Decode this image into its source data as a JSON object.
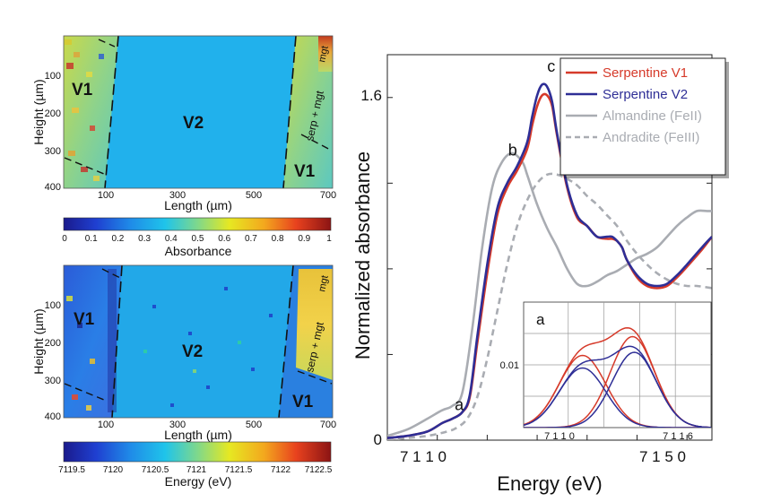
{
  "chart_data": [
    {
      "type": "heatmap",
      "panel": "absorbance-map",
      "ylabel": "Height (µm)",
      "xlabel": "Length (µm)",
      "yticks": [
        "100",
        "200",
        "300",
        "400"
      ],
      "xticks": [
        "100",
        "300",
        "500",
        "700"
      ],
      "regions": [
        "V1",
        "V2",
        "V1"
      ],
      "annotation": "serp + mgt",
      "annotation_top": "mgt",
      "colorbar": {
        "label": "Absorbance",
        "ticks": [
          "0",
          "0.1",
          "0.2",
          "0.3",
          "0.4",
          "0.5",
          "0.6",
          "0.7",
          "0.8",
          "0.9",
          "1"
        ]
      }
    },
    {
      "type": "heatmap",
      "panel": "energy-map",
      "ylabel": "Height (µm)",
      "xlabel": "Length (µm)",
      "yticks": [
        "100",
        "200",
        "300",
        "400"
      ],
      "xticks": [
        "100",
        "300",
        "500",
        "700"
      ],
      "regions": [
        "V1",
        "V2",
        "V1"
      ],
      "annotation": "serp + mgt",
      "annotation_top": "mgt",
      "colorbar": {
        "label": "Energy (eV)",
        "ticks": [
          "7119.5",
          "7120",
          "7120.5",
          "7121",
          "7121.5",
          "7122",
          "7122.5"
        ]
      }
    },
    {
      "type": "line",
      "panel": "xanes-spectra",
      "xlabel": "Energy (eV)",
      "ylabel": "Normalized absorbance",
      "xticks": [
        "7 1 1 0",
        "7 1 5 0"
      ],
      "yticks": [
        "0",
        "1.6"
      ],
      "xlim": [
        7100,
        7165
      ],
      "ylim": [
        0,
        1.8
      ],
      "peak_labels": [
        {
          "text": "a",
          "x": 7113.5,
          "y": 0.14
        },
        {
          "text": "b",
          "x": 7124.2,
          "y": 1.33
        },
        {
          "text": "c",
          "x": 7132,
          "y": 1.72
        }
      ],
      "series": [
        {
          "name": "Serpentine V1",
          "color": "#d63a2a",
          "dash": "solid",
          "x": [
            7100,
            7104,
            7108,
            7111,
            7113,
            7115,
            7116.5,
            7118,
            7120,
            7122,
            7124,
            7126,
            7128,
            7129,
            7130,
            7131,
            7132,
            7133,
            7134,
            7136,
            7138,
            7140,
            7142,
            7144,
            7145,
            7146,
            7147,
            7148,
            7150,
            7152,
            7154,
            7156,
            7158,
            7160,
            7163,
            7165
          ],
          "y": [
            0.01,
            0.02,
            0.04,
            0.08,
            0.1,
            0.13,
            0.2,
            0.45,
            0.78,
            1.05,
            1.18,
            1.26,
            1.36,
            1.47,
            1.56,
            1.61,
            1.61,
            1.56,
            1.42,
            1.18,
            1.04,
            1.0,
            0.95,
            0.94,
            0.94,
            0.93,
            0.9,
            0.84,
            0.76,
            0.72,
            0.71,
            0.72,
            0.76,
            0.81,
            0.89,
            0.95
          ]
        },
        {
          "name": "Serpentine V2",
          "color": "#2e2e96",
          "dash": "solid",
          "x": [
            7100,
            7104,
            7108,
            7111,
            7113,
            7115,
            7116.5,
            7118,
            7120,
            7122,
            7124,
            7126,
            7128,
            7129,
            7130,
            7131,
            7132,
            7133,
            7134,
            7136,
            7138,
            7140,
            7142,
            7144,
            7145,
            7146,
            7147,
            7148,
            7150,
            7152,
            7154,
            7156,
            7158,
            7160,
            7163,
            7165
          ],
          "y": [
            0.01,
            0.02,
            0.04,
            0.08,
            0.1,
            0.13,
            0.21,
            0.48,
            0.82,
            1.08,
            1.2,
            1.28,
            1.39,
            1.51,
            1.61,
            1.66,
            1.65,
            1.58,
            1.43,
            1.19,
            1.05,
            1.0,
            0.95,
            0.95,
            0.95,
            0.93,
            0.9,
            0.84,
            0.77,
            0.73,
            0.72,
            0.73,
            0.77,
            0.82,
            0.9,
            0.95
          ]
        },
        {
          "name": "Almandine (FeII)",
          "color": "#a9acb2",
          "dash": "solid",
          "x": [
            7100,
            7104,
            7108,
            7111,
            7113,
            7115,
            7117,
            7119,
            7121,
            7123,
            7125,
            7127,
            7128,
            7130,
            7132,
            7134,
            7136,
            7138,
            7140,
            7142,
            7144,
            7146,
            7148,
            7150,
            7152,
            7154,
            7156,
            7158,
            7160,
            7162,
            7164,
            7165
          ],
          "y": [
            0.02,
            0.05,
            0.1,
            0.14,
            0.16,
            0.22,
            0.52,
            0.9,
            1.18,
            1.3,
            1.34,
            1.3,
            1.24,
            1.1,
            0.99,
            0.9,
            0.8,
            0.73,
            0.72,
            0.74,
            0.77,
            0.79,
            0.82,
            0.85,
            0.87,
            0.9,
            0.95,
            1.0,
            1.04,
            1.07,
            1.07,
            1.07
          ]
        },
        {
          "name": "Andradite (FeIII)",
          "color": "#a9acb2",
          "dash": "dashed",
          "x": [
            7100,
            7104,
            7108,
            7112,
            7114,
            7116,
            7118,
            7120,
            7122,
            7124,
            7126,
            7128,
            7130,
            7132,
            7134,
            7136,
            7138,
            7140,
            7142,
            7144,
            7146,
            7148,
            7150,
            7152,
            7154,
            7156,
            7158,
            7160,
            7162,
            7165
          ],
          "y": [
            0.0,
            0.01,
            0.02,
            0.04,
            0.06,
            0.1,
            0.2,
            0.38,
            0.6,
            0.82,
            1.0,
            1.12,
            1.2,
            1.24,
            1.24,
            1.22,
            1.19,
            1.14,
            1.1,
            1.05,
            1.0,
            0.93,
            0.87,
            0.82,
            0.78,
            0.75,
            0.73,
            0.72,
            0.72,
            0.71
          ]
        }
      ],
      "inset": {
        "label": "a",
        "xticks": [
          "7 1 1 0",
          "7 1 1 6"
        ],
        "ytick": "0.01",
        "xlim": [
          7107.5,
          7118
        ],
        "ylim": [
          0,
          0.02
        ],
        "curves": [
          {
            "series": "Serpentine V1",
            "color": "#d63a2a",
            "mu": 7110.8,
            "sigma": 1.3,
            "amp": 0.0115
          },
          {
            "series": "Serpentine V1",
            "color": "#d63a2a",
            "mu": 7113.6,
            "sigma": 1.25,
            "amp": 0.0145
          },
          {
            "series": "Serpentine V1",
            "color": "#d63a2a",
            "sum": true
          },
          {
            "series": "Serpentine V2",
            "color": "#2e2e96",
            "mu": 7110.8,
            "sigma": 1.3,
            "amp": 0.0095
          },
          {
            "series": "Serpentine V2",
            "color": "#2e2e96",
            "mu": 7113.7,
            "sigma": 1.25,
            "amp": 0.012
          },
          {
            "series": "Serpentine V2",
            "color": "#2e2e96",
            "sum": true
          }
        ]
      }
    }
  ]
}
